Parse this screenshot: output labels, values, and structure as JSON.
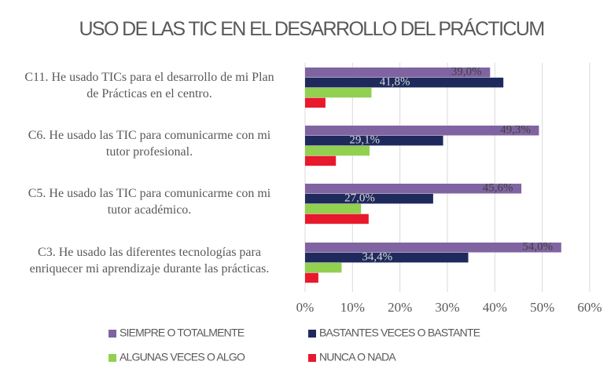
{
  "chart_data": {
    "type": "bar",
    "orientation": "horizontal",
    "title": "USO DE LAS TIC EN EL DESARROLLO DEL PRÁCTICUM",
    "categories": [
      "C11. He usado TICs para el desarrollo de mi Plan\nde Prácticas en el centro.",
      "C6. He usado las TIC para comunicarme con mi\ntutor profesional.",
      "C5. He usado las TIC para comunicarme con mi\ntutor académico.",
      "C3. He usado las diferentes tecnologías para\nenriquecer mi aprendizaje durante las prácticas."
    ],
    "series": [
      {
        "name": "SIEMPRE O TOTALMENTE",
        "color": "#8064a2",
        "values": [
          39.0,
          49.3,
          45.6,
          54.0
        ],
        "value_labels": [
          "39,0%",
          "49,3%",
          "45,6%",
          "54,0%"
        ]
      },
      {
        "name": "BASTANTES VECES O BASTANTE",
        "color": "#1f2a5c",
        "values": [
          41.8,
          29.1,
          27.0,
          34.4
        ],
        "value_labels": [
          "41,8%",
          "29,1%",
          "27,0%",
          "34,4%"
        ]
      },
      {
        "name": "ALGUNAS VECES O ALGO",
        "color": "#92d050",
        "values": [
          14.0,
          13.6,
          11.8,
          7.7
        ]
      },
      {
        "name": "NUNCA O NADA",
        "color": "#e8192c",
        "values": [
          4.3,
          6.5,
          13.4,
          2.8
        ]
      }
    ],
    "xlim": [
      0,
      60
    ],
    "xticks": [
      {
        "value": 0,
        "label": "0%"
      },
      {
        "value": 10,
        "label": "10%"
      },
      {
        "value": 20,
        "label": "20%"
      },
      {
        "value": 30,
        "label": "30%"
      },
      {
        "value": 40,
        "label": "40%"
      },
      {
        "value": 50,
        "label": "50%"
      },
      {
        "value": 60,
        "label": "60%"
      }
    ],
    "grid": true
  }
}
